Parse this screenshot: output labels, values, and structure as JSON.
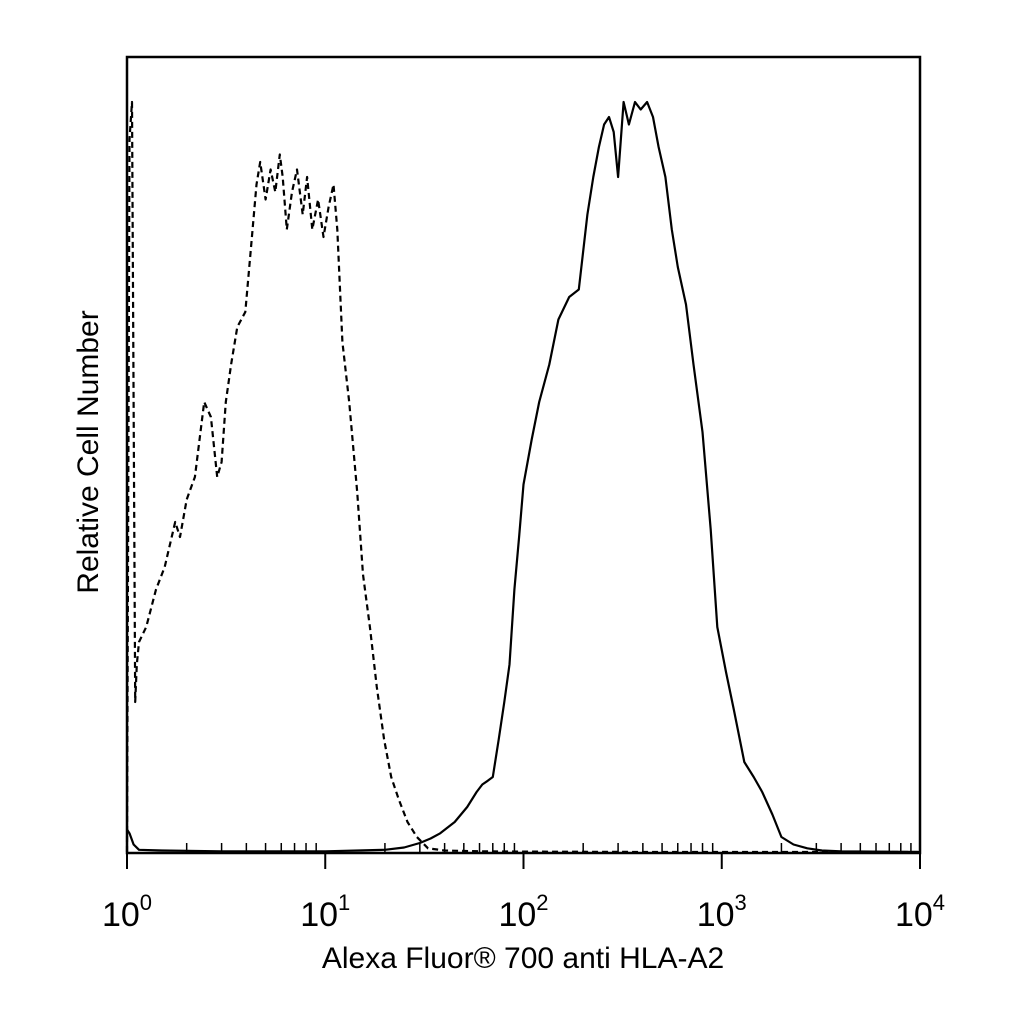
{
  "chart_data": {
    "type": "line",
    "title": "",
    "xlabel": "Alexa Fluor® 700 anti HLA-A2",
    "ylabel": "Relative Cell Number",
    "x_scale": "log",
    "xlim": [
      1,
      10000
    ],
    "ylim": [
      0,
      100
    ],
    "grid": false,
    "legend": "none",
    "x_ticks": [
      {
        "base": "10",
        "exp": "0",
        "value": 1
      },
      {
        "base": "10",
        "exp": "1",
        "value": 10
      },
      {
        "base": "10",
        "exp": "2",
        "value": 100
      },
      {
        "base": "10",
        "exp": "3",
        "value": 1000
      },
      {
        "base": "10",
        "exp": "4",
        "value": 10000
      }
    ],
    "series": [
      {
        "style": "dashed",
        "color": "#000000",
        "x": [
          1.0,
          1.03,
          1.06,
          1.08,
          1.1,
          1.12,
          1.15,
          1.25,
          1.4,
          1.55,
          1.75,
          1.85,
          2.0,
          2.2,
          2.45,
          2.65,
          2.85,
          3.0,
          3.15,
          3.35,
          3.6,
          3.95,
          4.2,
          4.5,
          4.7,
          5.0,
          5.3,
          5.6,
          5.9,
          6.1,
          6.4,
          6.8,
          7.2,
          7.7,
          8.1,
          8.6,
          9.2,
          9.8,
          10.4,
          11.0,
          11.5,
          12.2,
          13.2,
          14.5,
          15.5,
          16.8,
          18.2,
          19.8,
          21.5,
          23.5,
          26.0,
          29.0,
          33.0,
          40.0,
          60.0,
          100.0,
          300.0,
          1000.0,
          3000.0,
          10000.0
        ],
        "y": [
          0,
          95,
          100,
          60,
          20,
          25,
          28,
          30,
          35,
          38,
          44,
          42,
          47,
          50,
          60,
          58,
          50,
          52,
          60,
          65,
          70,
          72,
          80,
          89,
          92,
          87,
          91,
          88,
          93,
          90,
          83,
          88,
          91,
          85,
          90,
          83,
          87,
          82,
          86,
          89,
          83,
          68,
          60,
          48,
          37,
          30,
          22,
          15,
          10,
          7,
          4,
          2,
          0.5,
          0.2,
          0.1,
          0.05,
          0.02,
          0,
          0,
          0
        ]
      },
      {
        "style": "solid",
        "color": "#000000",
        "x": [
          1.0,
          1.03,
          1.08,
          1.15,
          1.5,
          3.0,
          10.0,
          20.0,
          25.0,
          30.0,
          34.0,
          38.0,
          45.0,
          52.0,
          58.0,
          62.0,
          66.0,
          70.0,
          75.0,
          80.0,
          85.0,
          90.0,
          95.0,
          100.0,
          110.0,
          120.0,
          135.0,
          150.0,
          170.0,
          190.0,
          210.0,
          225.0,
          240.0,
          255.0,
          270.0,
          285.0,
          300.0,
          320.0,
          340.0,
          365.0,
          390.0,
          420.0,
          450.0,
          480.0,
          520.0,
          560.0,
          600.0,
          660.0,
          720.0,
          800.0,
          880.0,
          950.0,
          1050.0,
          1150.0,
          1300.0,
          1450.0,
          1600.0,
          1800.0,
          2000.0,
          2300.0,
          2700.0,
          3200.0,
          4000.0,
          10000.0
        ],
        "y": [
          3,
          2.5,
          1,
          0.3,
          0.2,
          0.1,
          0.1,
          0.3,
          0.6,
          1.2,
          1.8,
          2.5,
          4,
          6,
          8,
          9,
          9.5,
          10,
          15,
          20,
          25,
          35,
          42,
          49,
          55,
          60,
          65,
          71,
          74,
          75,
          85,
          90,
          94,
          97,
          98,
          96,
          90,
          100,
          97,
          100,
          99,
          100,
          98,
          94,
          90,
          83,
          78,
          73,
          65,
          56,
          43,
          30,
          24,
          19,
          12,
          10,
          8,
          5,
          2,
          1,
          0.5,
          0.2,
          0.1,
          0
        ]
      }
    ]
  }
}
